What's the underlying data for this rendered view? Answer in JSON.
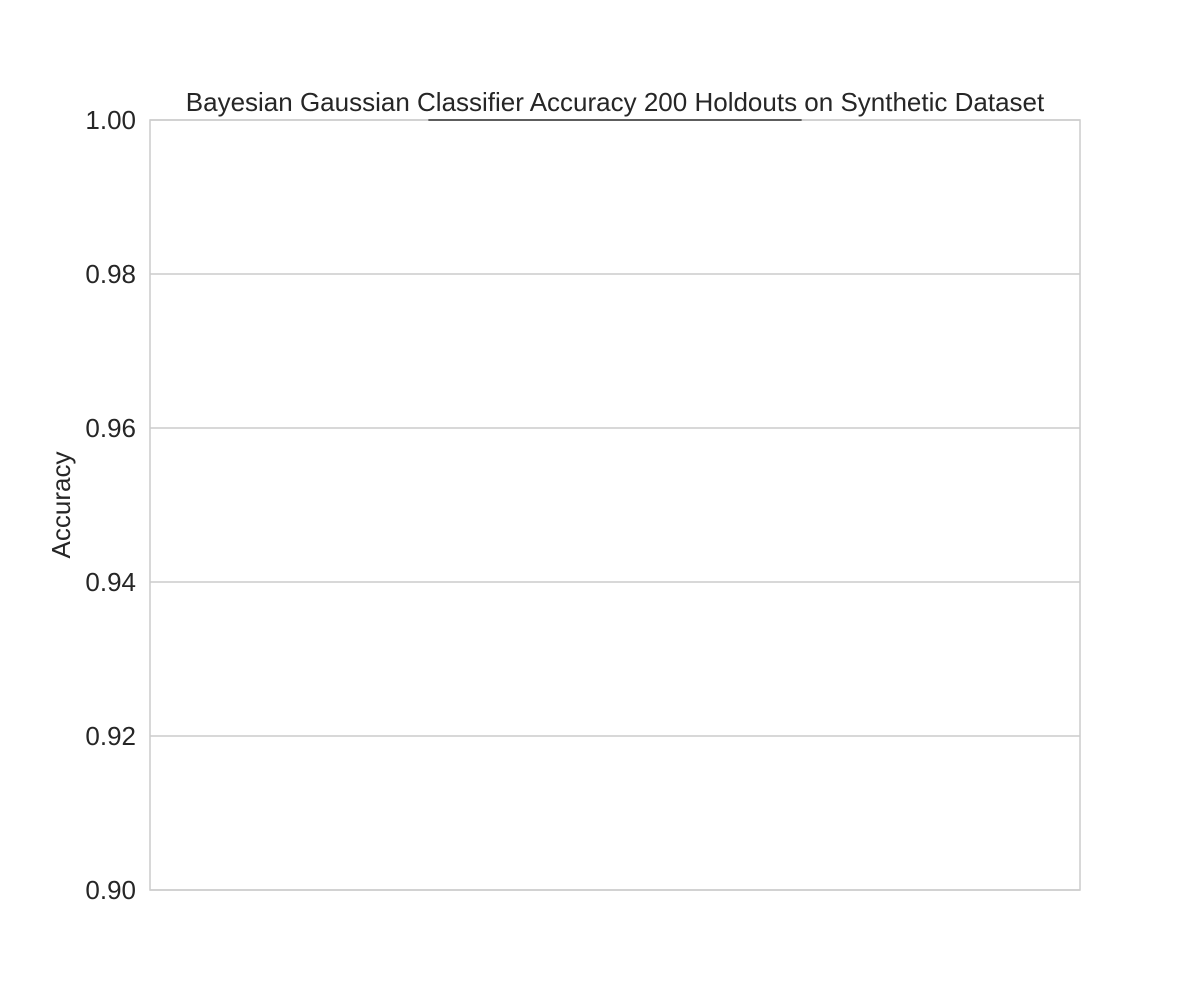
{
  "chart_data": {
    "type": "box",
    "title": "Bayesian Gaussian Classifier Accuracy 200 Holdouts on Synthetic Dataset",
    "xlabel": "",
    "ylabel": "Accuracy",
    "ylim": [
      0.9,
      1.0
    ],
    "yticks": [
      "0.90",
      "0.92",
      "0.94",
      "0.96",
      "0.98",
      "1.00"
    ],
    "grid": true,
    "series": [
      {
        "values": {
          "min": 1.0,
          "q1": 1.0,
          "median": 1.0,
          "q3": 1.0,
          "max": 1.0
        }
      }
    ],
    "colors": {
      "grid": "#cccccc",
      "spine": "#cccccc",
      "box_line": "#4d4d4d",
      "text": "#262626"
    }
  }
}
